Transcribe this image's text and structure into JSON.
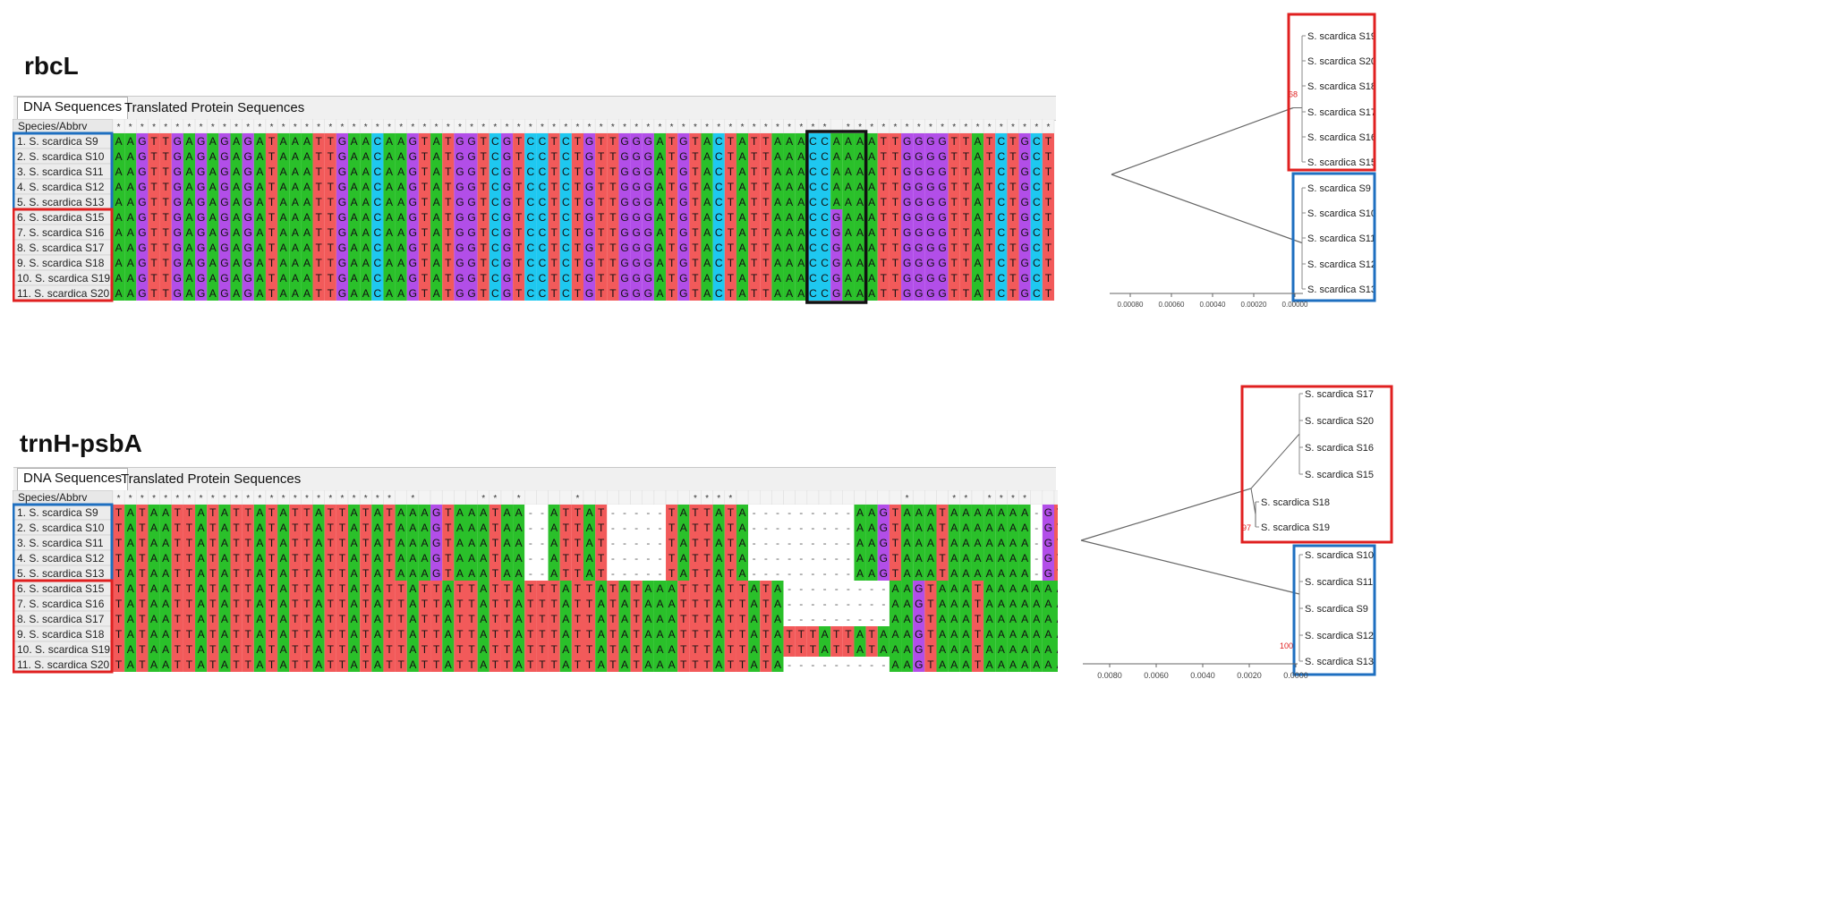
{
  "top": {
    "title": "rbcL",
    "tabs": [
      "DNA Sequences",
      "Translated Protein Sequences"
    ],
    "header": "Species/Abbrv",
    "rows": [
      "1. S. scardica S9",
      "2. S. scardica S10",
      "3. S. scardica S11",
      "4. S. scardica S12",
      "5. S. scardica S13",
      "6. S. scardica S15",
      "7. S. scardica S16",
      "8. S. scardica S17",
      "9. S. scardica S18",
      "10. S. scardica S19",
      "11. S. scardica S20"
    ],
    "seqA": "AAGTTGAGAGAGATAAATTGAACAAGTATGGTCGTCCTCTGTTGGGATGTACTATTAAACCAAAATTGGGGTTATCTGCT",
    "seqB": "AAGTTGAGAGAGATAAATTGAACAAGTATGGTCGTCCTCTGTTGGGATGTACTATTAAACCGAAATTGGGGTTATCTGCT",
    "tree": {
      "groupA": [
        "S. scardica S19",
        "S. scardica S20",
        "S. scardica S18",
        "S. scardica S17",
        "S. scardica S16",
        "S. scardica S15"
      ],
      "groupB": [
        "S. scardica S9",
        "S. scardica S10",
        "S. scardica S11",
        "S. scardica S12",
        "S. scardica S13"
      ],
      "bootstrap": "68",
      "scale": [
        "0.00080",
        "0.00060",
        "0.00040",
        "0.00020",
        "0.00000"
      ]
    }
  },
  "bottom": {
    "title": "trnH-psbA",
    "tabs": [
      "DNA Sequences",
      "Translated Protein Sequences"
    ],
    "header": "Species/Abbrv",
    "rows": [
      "1. S. scardica S9",
      "2. S. scardica S10",
      "3. S. scardica S11",
      "4. S. scardica S12",
      "5. S. scardica S13",
      "6. S. scardica S15",
      "7. S. scardica S16",
      "8. S. scardica S17",
      "9. S. scardica S18",
      "10. S. scardica S19",
      "11. S. scardica S20"
    ],
    "seqA": "TATAATTATATTATATTATTATATAAAGTAAATAA--ATTAT-----TATTATA---------AAGTAAATAAAAAAA-GTGAATTTT",
    "seqB": "TATAATTATATTATATTATTATATTATTATTATTATTTATTATATAAATTTATTATA---------AAGTAAATAAAAAAAAGTGAATTTT",
    "seqC": "TATAATTATATTATATTATTATATTATTATTATTATTTATTATATAAATTTATTATATTTATTATAAAGTAAATAAAAAAAAGTGAATTTT",
    "seqD": "TATAATTATATTATATTATTATATTATTATTATTATTTATTATATAAATTTATTATA---------AAGTAAATAAAAAAAAGTGAATTTT",
    "tree": {
      "groupA": [
        "S. scardica S17",
        "S. scardica S20",
        "S. scardica S16",
        "S. scardica S15"
      ],
      "groupA2": [
        "S. scardica S18",
        "S. scardica S19"
      ],
      "groupB": [
        "S. scardica S10",
        "S. scardica S11",
        "S. scardica S9",
        "S. scardica S12",
        "S. scardica S13"
      ],
      "bootstrap1": "97",
      "bootstrap2": "100",
      "scale": [
        "0.0080",
        "0.0060",
        "0.0040",
        "0.0020",
        "0.0000"
      ]
    }
  },
  "colors": {
    "A": "#2ac02a",
    "T": "#f25a5a",
    "G": "#b24ee8",
    "C": "#1ec8f0",
    "gap": "#ffffff",
    "red": "#e02020",
    "blue": "#1e6fc0"
  }
}
